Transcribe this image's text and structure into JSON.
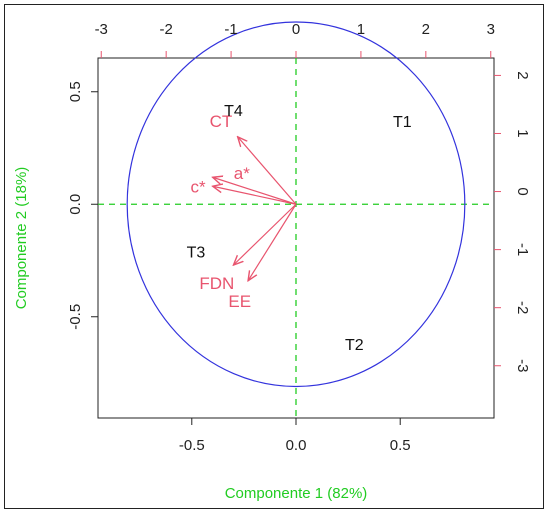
{
  "chart_data": {
    "type": "scatter",
    "subtype": "pca-biplot",
    "xlabel": "Componente 1 (82%)",
    "ylabel": "Componente 2 (18%)",
    "xlim": [
      -0.95,
      0.95
    ],
    "ylim": [
      -0.95,
      0.65
    ],
    "xticks": [
      "-0.5",
      "0.0",
      "0.5"
    ],
    "xtick_values": [
      -0.5,
      0.0,
      0.5
    ],
    "yticks": [
      "-0.5",
      "0.0",
      "0.5"
    ],
    "ytick_values": [
      -0.5,
      0.0,
      0.5
    ],
    "top_axis": {
      "ticks": [
        "-3",
        "-2",
        "-1",
        "0",
        "1",
        "2",
        "3"
      ],
      "values": [
        -3,
        -2,
        -1,
        0,
        1,
        2,
        3
      ],
      "lim": [
        -3.05,
        3.05
      ]
    },
    "right_axis": {
      "ticks": [
        "2",
        "1",
        "0",
        "-1",
        "-2",
        "-3"
      ],
      "values": [
        2,
        1,
        0,
        -1,
        -2,
        -3
      ],
      "lim": [
        -3.9,
        2.3
      ]
    },
    "circle_radius": 0.81,
    "observations": [
      {
        "label": "T1",
        "x": 0.51,
        "y": 0.37
      },
      {
        "label": "T2",
        "x": 0.28,
        "y": -0.62
      },
      {
        "label": "T3",
        "x": -0.48,
        "y": -0.21
      },
      {
        "label": "T4",
        "x": -0.3,
        "y": 0.42
      }
    ],
    "variables": [
      {
        "label": "CT",
        "x": -0.28,
        "y": 0.3,
        "lx": -0.36,
        "ly": 0.37
      },
      {
        "label": "a*",
        "x": -0.4,
        "y": 0.12,
        "lx": -0.26,
        "ly": 0.14
      },
      {
        "label": "c*",
        "x": -0.4,
        "y": 0.08,
        "lx": -0.47,
        "ly": 0.08
      },
      {
        "label": "FDN",
        "x": -0.3,
        "y": -0.27,
        "lx": -0.38,
        "ly": -0.35
      },
      {
        "label": "EE",
        "x": -0.23,
        "y": -0.34,
        "lx": -0.27,
        "ly": -0.43
      }
    ],
    "colors": {
      "observations": "#111111",
      "variables": "#e8546e",
      "circle": "#3333dd",
      "reference_lines": "#22cc22",
      "axis_labels": "#22cc22",
      "secondary_axes": "#e8546e"
    }
  }
}
